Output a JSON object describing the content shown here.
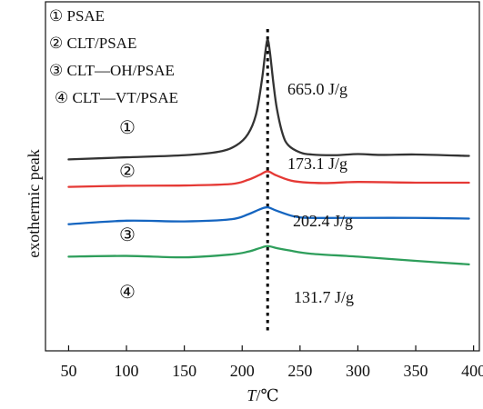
{
  "chart_data": {
    "type": "line",
    "title": "",
    "xlabel": "T/℃",
    "xlabel_italic_part": "T",
    "xlabel_unit_part": "/℃",
    "ylabel": "exothermic peak",
    "xlim": [
      30,
      405
    ],
    "xticks": [
      50,
      100,
      150,
      200,
      250,
      300,
      350,
      400
    ],
    "x_tick_labels": [
      "50",
      "100",
      "150",
      "200",
      "250",
      "300",
      "350",
      "400"
    ],
    "y_axis": "no numeric ticks (relative heat flow, curves vertically offset)",
    "reference_line": {
      "x": 222,
      "style": "dotted",
      "color": "#000000"
    },
    "legend": [
      {
        "marker": "①",
        "label": "PSAE"
      },
      {
        "marker": "②",
        "label": "CLT/PSAE"
      },
      {
        "marker": "③",
        "label": "CLT—OH/PSAE"
      },
      {
        "marker": "④",
        "label": "CLT—VT/PSAE"
      }
    ],
    "legend_placement": "top-left",
    "series": [
      {
        "marker": "①",
        "color": "#333333",
        "annotation": "665.0 J/g",
        "x": [
          50,
          100,
          150,
          180,
          195,
          205,
          212,
          217,
          220,
          222,
          224,
          227,
          230,
          235,
          240,
          250,
          260,
          280,
          300,
          320,
          350,
          396
        ],
        "y": [
          12,
          13.5,
          15,
          17.5,
          22,
          30,
          44,
          68,
          88,
          97,
          88,
          66,
          48,
          30,
          22,
          17,
          15.5,
          15,
          15.8,
          15.2,
          15.5,
          14.5
        ]
      },
      {
        "marker": "②",
        "color": "#e53935",
        "annotation": "173.1 J/g",
        "x": [
          50,
          100,
          150,
          190,
          205,
          215,
          222,
          230,
          245,
          270,
          300,
          350,
          396
        ],
        "y": [
          -7.5,
          -6.7,
          -6.5,
          -5.5,
          -2.5,
          1,
          3.5,
          0.5,
          -3.5,
          -4.8,
          -4,
          -4.5,
          -4.5
        ]
      },
      {
        "marker": "③",
        "color": "#1565c0",
        "annotation": "202.4 J/g",
        "x": [
          50,
          100,
          150,
          190,
          205,
          215,
          222,
          230,
          245,
          260,
          300,
          350,
          396
        ],
        "y": [
          -34,
          -31.5,
          -32,
          -30.5,
          -27,
          -23.5,
          -22,
          -24.5,
          -28.5,
          -29.5,
          -29.5,
          -29.5,
          -30
        ]
      },
      {
        "marker": "④",
        "color": "#2e9e5b",
        "annotation": "131.7 J/g",
        "x": [
          50,
          100,
          150,
          190,
          205,
          215,
          222,
          230,
          240,
          260,
          300,
          350,
          396
        ],
        "y": [
          -57,
          -56.5,
          -57.5,
          -55.5,
          -53.5,
          -51,
          -49.5,
          -51,
          -52.5,
          -55,
          -57,
          -60,
          -62.5
        ]
      }
    ]
  }
}
